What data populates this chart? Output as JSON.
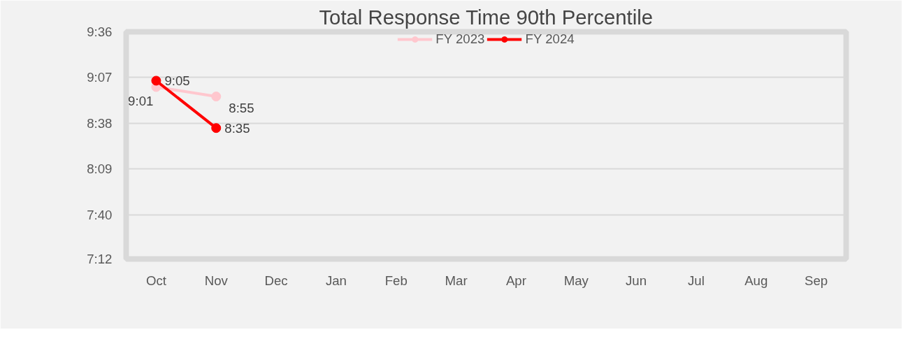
{
  "chart_data": {
    "type": "line",
    "title": "Total Response Time 90th Percentile",
    "categories": [
      "Oct",
      "Nov",
      "Dec",
      "Jan",
      "Feb",
      "Mar",
      "Apr",
      "May",
      "Jun",
      "Jul",
      "Aug",
      "Sep"
    ],
    "series": [
      {
        "name": "FY 2023",
        "color": "#ffc7ce",
        "values": [
          9.0167,
          8.9167,
          null,
          null,
          null,
          null,
          null,
          null,
          null,
          null,
          null,
          null
        ],
        "value_labels": [
          "9:01",
          "8:55",
          null,
          null,
          null,
          null,
          null,
          null,
          null,
          null,
          null,
          null
        ]
      },
      {
        "name": "FY 2024",
        "color": "#ff0000",
        "values": [
          9.0833,
          8.5833,
          null,
          null,
          null,
          null,
          null,
          null,
          null,
          null,
          null,
          null
        ],
        "value_labels": [
          "9:05",
          "8:35",
          null,
          null,
          null,
          null,
          null,
          null,
          null,
          null,
          null,
          null
        ]
      }
    ],
    "ylim": [
      7.2,
      9.6
    ],
    "yticks": [
      {
        "value": 7.2,
        "label": "7:12"
      },
      {
        "value": 7.6667,
        "label": "7:40"
      },
      {
        "value": 8.15,
        "label": "8:09"
      },
      {
        "value": 8.6333,
        "label": "8:38"
      },
      {
        "value": 9.1167,
        "label": "9:07"
      },
      {
        "value": 9.6,
        "label": "9:36"
      }
    ],
    "grid": "y",
    "legend": "top",
    "marker": "circle",
    "line_style": "solid"
  }
}
